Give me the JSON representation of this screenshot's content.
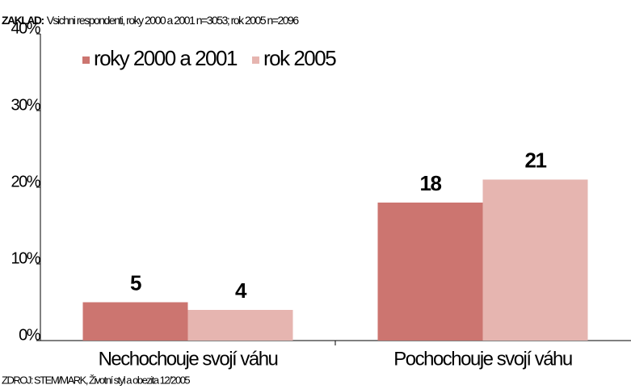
{
  "chart_data": {
    "type": "bar",
    "base_label": "ZAKLAD:",
    "base_text": "Vsichni respondenti, roky 2000 a 2001 n=3053; rok 2005 n=2096",
    "source": "ZDROJ: STEM/MARK, Životní styl a obezita 12/2005",
    "categories": [
      "Nechochouje svojí váhu",
      "Pochochouje svojí váhu"
    ],
    "series": [
      {
        "name": "roky 2000 a 2001",
        "color": "#cc7570",
        "values": [
          5,
          18
        ],
        "value_labels": [
          "5",
          "18"
        ]
      },
      {
        "name": "rok 2005",
        "color": "#e6b5b0",
        "values": [
          4,
          21
        ],
        "value_labels": [
          "4",
          "21"
        ]
      }
    ],
    "ylim": [
      0,
      40
    ],
    "yticks": [
      {
        "value": 0,
        "label": "0%"
      },
      {
        "value": 10,
        "label": "10%"
      },
      {
        "value": 20,
        "label": "20%"
      },
      {
        "value": 30,
        "label": "30%"
      },
      {
        "value": 40,
        "label": "40%"
      }
    ],
    "legend": "top-left"
  }
}
